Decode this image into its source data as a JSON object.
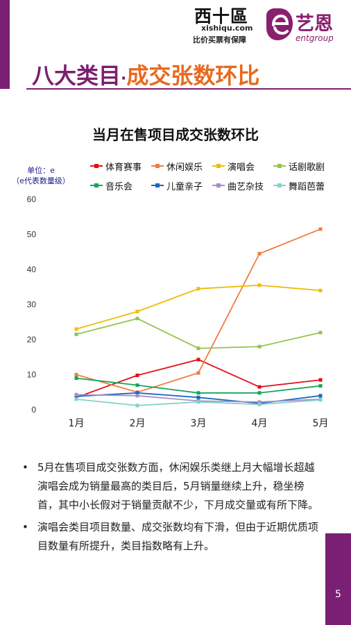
{
  "header": {
    "xsq_brand": "西十區",
    "xsq_domain": "xishiqu.com",
    "xsq_slogan": "比价买票有保障",
    "ent_name_cn": "艺恩",
    "ent_name_en": "entgroup"
  },
  "title": {
    "part1": "八大类目",
    "separator": "·",
    "part2": "成交张数环比"
  },
  "chart_data": {
    "type": "line",
    "title": "当月在售项目成交张数环比",
    "unit_line1": "单位：e",
    "unit_line2": "（e代表数量级）",
    "categories": [
      "1月",
      "2月",
      "3月",
      "4月",
      "5月"
    ],
    "ylim": [
      0,
      60
    ],
    "yticks": [
      0,
      10,
      20,
      30,
      40,
      50,
      60
    ],
    "grid": false,
    "legend_position": "top",
    "series": [
      {
        "name": "体育赛事",
        "color": "#e30e18",
        "values": [
          3.5,
          9.8,
          14.3,
          6.5,
          8.5
        ]
      },
      {
        "name": "休闲娱乐",
        "color": "#f07d3c",
        "values": [
          10,
          5,
          10.5,
          44.5,
          51.5
        ]
      },
      {
        "name": "演唱会",
        "color": "#f2bb0c",
        "values": [
          23,
          28,
          34.5,
          35.5,
          34
        ]
      },
      {
        "name": "话剧歌剧",
        "color": "#92c54a",
        "values": [
          21.5,
          26,
          17.5,
          18,
          22
        ]
      },
      {
        "name": "音乐会",
        "color": "#16a45a",
        "values": [
          9,
          7,
          4.8,
          4.8,
          6.8
        ]
      },
      {
        "name": "儿童亲子",
        "color": "#1a66c7",
        "values": [
          3.8,
          4.8,
          3.5,
          1.8,
          4
        ]
      },
      {
        "name": "曲艺杂技",
        "color": "#a88ec8",
        "values": [
          4.3,
          4,
          2.5,
          2.2,
          3
        ]
      },
      {
        "name": "舞蹈芭蕾",
        "color": "#7fd3c8",
        "values": [
          3,
          1.2,
          2.2,
          1.5,
          2.8
        ]
      }
    ]
  },
  "bullets": [
    "5月在售项目成交张数方面，休闲娱乐类继上月大幅增长超越演唱会成为销量最高的类目后，5月销量继续上升，稳坐榜首，其中小长假对于销量贡献不少，下月成交量或有所下降。",
    "演唱会类目项目数量、成交张数均有下滑，但由于近期优质项目数量有所提升，类目指数略有上升。"
  ],
  "bullet_marker": "•",
  "page_number": "5"
}
